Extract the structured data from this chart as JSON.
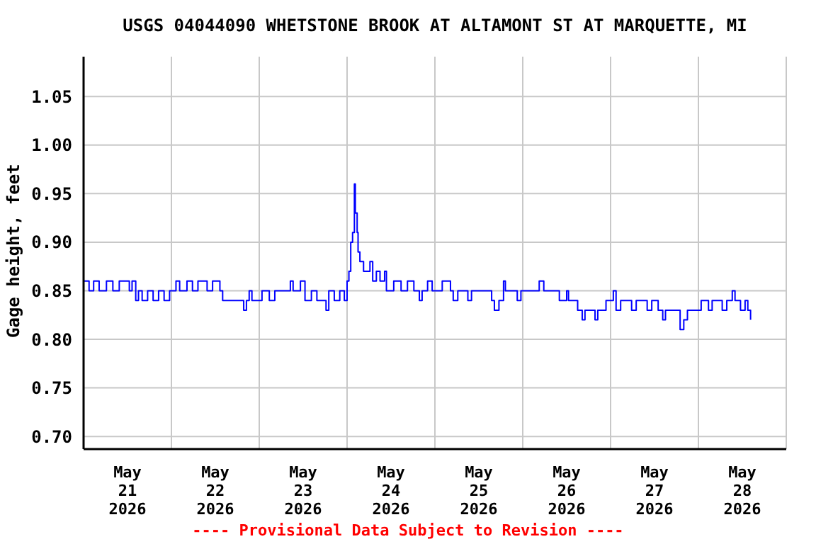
{
  "chart_data": {
    "type": "step",
    "title": "USGS 04044090 WHETSTONE BROOK AT ALTAMONT ST AT MARQUETTE, MI",
    "ylabel": "Gage height, feet",
    "annotations": [
      "---- Provisional Data Subject to Revision ----"
    ],
    "x": [
      "2026-05-21T00:00",
      "2026-05-21T01:30",
      "2026-05-21T02:45",
      "2026-05-21T04:15",
      "2026-05-21T06:15",
      "2026-05-21T08:00",
      "2026-05-21T09:45",
      "2026-05-21T12:30",
      "2026-05-21T13:15",
      "2026-05-21T14:15",
      "2026-05-21T15:00",
      "2026-05-21T16:00",
      "2026-05-21T17:30",
      "2026-05-21T19:00",
      "2026-05-21T20:30",
      "2026-05-21T22:00",
      "2026-05-21T23:30",
      "2026-05-22T01:15",
      "2026-05-22T02:15",
      "2026-05-22T04:15",
      "2026-05-22T05:45",
      "2026-05-22T07:15",
      "2026-05-22T09:45",
      "2026-05-22T11:15",
      "2026-05-22T13:15",
      "2026-05-22T14:00",
      "2026-05-22T19:45",
      "2026-05-22T20:30",
      "2026-05-22T21:15",
      "2026-05-22T22:00",
      "2026-05-23T00:45",
      "2026-05-23T02:45",
      "2026-05-23T04:15",
      "2026-05-23T08:30",
      "2026-05-23T09:15",
      "2026-05-23T11:15",
      "2026-05-23T12:30",
      "2026-05-23T14:15",
      "2026-05-23T15:45",
      "2026-05-23T18:15",
      "2026-05-23T19:00",
      "2026-05-23T20:30",
      "2026-05-23T22:00",
      "2026-05-23T23:15",
      "2026-05-24T00:00",
      "2026-05-24T00:30",
      "2026-05-24T01:00",
      "2026-05-24T01:30",
      "2026-05-24T02:00",
      "2026-05-24T02:15",
      "2026-05-24T02:45",
      "2026-05-24T03:00",
      "2026-05-24T03:30",
      "2026-05-24T04:30",
      "2026-05-24T06:15",
      "2026-05-24T07:00",
      "2026-05-24T08:00",
      "2026-05-24T09:00",
      "2026-05-24T10:15",
      "2026-05-24T10:45",
      "2026-05-24T12:45",
      "2026-05-24T14:45",
      "2026-05-24T16:30",
      "2026-05-24T18:15",
      "2026-05-24T19:45",
      "2026-05-24T20:30",
      "2026-05-24T22:00",
      "2026-05-24T23:15",
      "2026-05-25T02:00",
      "2026-05-25T04:15",
      "2026-05-25T05:00",
      "2026-05-25T06:15",
      "2026-05-25T09:00",
      "2026-05-25T10:00",
      "2026-05-25T15:30",
      "2026-05-25T16:15",
      "2026-05-25T17:30",
      "2026-05-25T18:45",
      "2026-05-25T19:15",
      "2026-05-25T22:30",
      "2026-05-25T23:30",
      "2026-05-26T04:30",
      "2026-05-26T05:45",
      "2026-05-26T10:00",
      "2026-05-26T12:00",
      "2026-05-26T12:30",
      "2026-05-26T15:00",
      "2026-05-26T16:15",
      "2026-05-26T17:00",
      "2026-05-26T19:45",
      "2026-05-26T20:30",
      "2026-05-26T22:45",
      "2026-05-27T00:45",
      "2026-05-27T01:30",
      "2026-05-27T02:45",
      "2026-05-27T05:45",
      "2026-05-27T07:00",
      "2026-05-27T10:00",
      "2026-05-27T11:15",
      "2026-05-27T13:00",
      "2026-05-27T14:15",
      "2026-05-27T15:00",
      "2026-05-27T19:00",
      "2026-05-27T20:00",
      "2026-05-27T21:00",
      "2026-05-28T00:00",
      "2026-05-28T00:45",
      "2026-05-28T02:45",
      "2026-05-28T03:45",
      "2026-05-28T06:30",
      "2026-05-28T07:45",
      "2026-05-28T09:15",
      "2026-05-28T10:00",
      "2026-05-28T11:30",
      "2026-05-28T12:45",
      "2026-05-28T13:30",
      "2026-05-28T14:15"
    ],
    "series": [
      {
        "color": "#0000ff",
        "values": [
          0.86,
          0.85,
          0.86,
          0.85,
          0.86,
          0.85,
          0.86,
          0.85,
          0.86,
          0.84,
          0.85,
          0.84,
          0.85,
          0.84,
          0.85,
          0.84,
          0.85,
          0.86,
          0.85,
          0.86,
          0.85,
          0.86,
          0.85,
          0.86,
          0.85,
          0.84,
          0.83,
          0.84,
          0.85,
          0.84,
          0.85,
          0.84,
          0.85,
          0.86,
          0.85,
          0.86,
          0.84,
          0.85,
          0.84,
          0.83,
          0.85,
          0.84,
          0.85,
          0.84,
          0.86,
          0.87,
          0.9,
          0.91,
          0.96,
          0.93,
          0.91,
          0.89,
          0.88,
          0.87,
          0.88,
          0.86,
          0.87,
          0.86,
          0.87,
          0.85,
          0.86,
          0.85,
          0.86,
          0.85,
          0.84,
          0.85,
          0.86,
          0.85,
          0.86,
          0.85,
          0.84,
          0.85,
          0.84,
          0.85,
          0.84,
          0.83,
          0.84,
          0.86,
          0.85,
          0.84,
          0.85,
          0.86,
          0.85,
          0.84,
          0.85,
          0.84,
          0.83,
          0.82,
          0.83,
          0.82,
          0.83,
          0.84,
          0.85,
          0.83,
          0.84,
          0.83,
          0.84,
          0.83,
          0.84,
          0.83,
          0.82,
          0.83,
          0.81,
          0.82,
          0.83,
          0.83,
          0.84,
          0.83,
          0.84,
          0.83,
          0.84,
          0.85,
          0.84,
          0.83,
          0.84,
          0.83,
          0.82
        ]
      }
    ],
    "xlim": [
      "2026-05-21T00:00",
      "2026-05-29T00:00"
    ],
    "xticks": [
      {
        "value": "2026-05-21T00:00",
        "label": null
      },
      {
        "value": "2026-05-21T12:00",
        "label": "May\n21\n2026"
      },
      {
        "value": "2026-05-22T00:00",
        "label": null
      },
      {
        "value": "2026-05-22T12:00",
        "label": "May\n22\n2026"
      },
      {
        "value": "2026-05-23T00:00",
        "label": null
      },
      {
        "value": "2026-05-23T12:00",
        "label": "May\n23\n2026"
      },
      {
        "value": "2026-05-24T00:00",
        "label": null
      },
      {
        "value": "2026-05-24T12:00",
        "label": "May\n24\n2026"
      },
      {
        "value": "2026-05-25T00:00",
        "label": null
      },
      {
        "value": "2026-05-25T12:00",
        "label": "May\n25\n2026"
      },
      {
        "value": "2026-05-26T00:00",
        "label": null
      },
      {
        "value": "2026-05-26T12:00",
        "label": "May\n26\n2026"
      },
      {
        "value": "2026-05-27T00:00",
        "label": null
      },
      {
        "value": "2026-05-27T12:00",
        "label": "May\n27\n2026"
      },
      {
        "value": "2026-05-28T00:00",
        "label": null
      },
      {
        "value": "2026-05-28T12:00",
        "label": "May\n28\n2026"
      },
      {
        "value": "2026-05-29T00:00",
        "label": null
      }
    ],
    "ylim": [
      0.687,
      1.091
    ],
    "yticks": [
      {
        "value": 0.7,
        "label": "0.70"
      },
      {
        "value": 0.75,
        "label": "0.75"
      },
      {
        "value": 0.8,
        "label": "0.80"
      },
      {
        "value": 0.85,
        "label": "0.85"
      },
      {
        "value": 0.9,
        "label": "0.90"
      },
      {
        "value": 0.95,
        "label": "0.95"
      },
      {
        "value": 1.0,
        "label": "1.00"
      },
      {
        "value": 1.05,
        "label": "1.05"
      }
    ],
    "grid": true,
    "legend": false,
    "line_style": "solid",
    "marker": "none"
  }
}
